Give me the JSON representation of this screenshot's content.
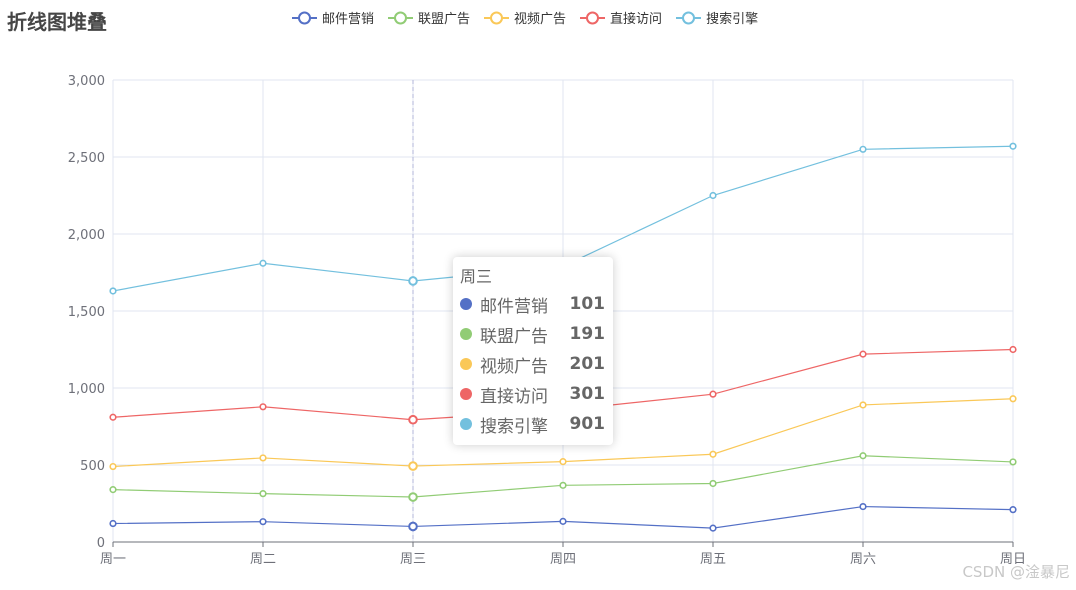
{
  "chart_data": {
    "type": "line",
    "title": "折线图堆叠",
    "categories": [
      "周一",
      "周二",
      "周三",
      "周四",
      "周五",
      "周六",
      "周日"
    ],
    "ylim": [
      0,
      3000
    ],
    "yticks": [
      "0",
      "500",
      "1,000",
      "1,500",
      "2,000",
      "2,500",
      "3,000"
    ],
    "stacked": true,
    "grid": true,
    "legend_position": "top-center",
    "series": [
      {
        "name": "邮件营销",
        "color": "#5470c6",
        "values": [
          120,
          132,
          101,
          134,
          90,
          230,
          210
        ]
      },
      {
        "name": "联盟广告",
        "color": "#91cc75",
        "values": [
          220,
          182,
          191,
          234,
          290,
          330,
          310
        ]
      },
      {
        "name": "视频广告",
        "color": "#fac858",
        "values": [
          150,
          232,
          201,
          154,
          190,
          330,
          410
        ]
      },
      {
        "name": "直接访问",
        "color": "#ee6666",
        "values": [
          320,
          332,
          301,
          334,
          390,
          330,
          320
        ]
      },
      {
        "name": "搜索引擎",
        "color": "#73c0de",
        "values": [
          820,
          932,
          901,
          934,
          1290,
          1330,
          1320
        ]
      }
    ]
  },
  "tooltip": {
    "title": "周三",
    "rows": [
      {
        "name": "邮件营销",
        "value": "101",
        "color": "#5470c6"
      },
      {
        "name": "联盟广告",
        "value": "191",
        "color": "#91cc75"
      },
      {
        "name": "视频广告",
        "value": "201",
        "color": "#fac858"
      },
      {
        "name": "直接访问",
        "value": "301",
        "color": "#ee6666"
      },
      {
        "name": "搜索引擎",
        "value": "901",
        "color": "#73c0de"
      }
    ]
  },
  "watermark": "CSDN @淦暴尼"
}
